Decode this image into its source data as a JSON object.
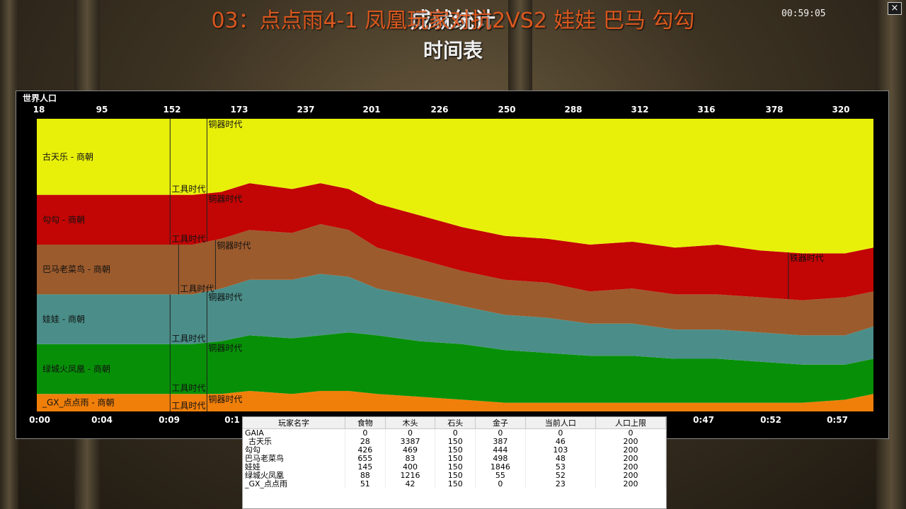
{
  "overlay_title": "03：点点雨4-1 凤凰玩家对抗2VS2 娃娃 巴马 勾勾",
  "window": {
    "title": "成就统计",
    "subtitle": "时间表",
    "clock": "00:59:05",
    "close_label": "×"
  },
  "chart_data": {
    "type": "area",
    "stacked": true,
    "normalized": true,
    "title": "世界人口",
    "population_ticks": [
      "18",
      "95",
      "152",
      "173",
      "237",
      "201",
      "226",
      "250",
      "288",
      "312",
      "316",
      "378",
      "320"
    ],
    "time_ticks": [
      "0:00",
      "0:04",
      "0:09",
      "0:1",
      "0:47",
      "0:52",
      "0:57"
    ],
    "x_minutes": [
      0,
      3,
      6,
      9,
      11,
      13,
      15,
      18,
      20,
      22,
      24,
      27,
      30,
      33,
      36,
      39,
      42,
      45,
      48,
      51,
      54,
      57,
      59
    ],
    "series": [
      {
        "name": "_GX_点点雨 - 商朝",
        "color": "#f07f0a",
        "values": [
          6,
          6,
          6,
          6,
          6,
          6,
          7,
          6,
          7,
          7,
          6,
          5,
          4,
          3,
          3,
          3,
          3,
          3,
          3,
          3,
          3,
          4,
          6
        ],
        "events": [
          {
            "label": "工具时代",
            "minute": 9.4
          },
          {
            "label": "铜器时代",
            "minute": 12.0
          }
        ]
      },
      {
        "name": "绿城火凤凰 - 商朝",
        "color": "#079007",
        "values": [
          17,
          17,
          17,
          17,
          17,
          18,
          19,
          19,
          19,
          20,
          20,
          19,
          19,
          18,
          17,
          16,
          16,
          15,
          15,
          14,
          13,
          12,
          12
        ],
        "events": [
          {
            "label": "工具时代",
            "minute": 9.4
          },
          {
            "label": "铜器时代",
            "minute": 12.0
          }
        ]
      },
      {
        "name": "娃娃 - 商朝",
        "color": "#4b8e89",
        "values": [
          17,
          17,
          17,
          17,
          17,
          18,
          19,
          20,
          21,
          19,
          16,
          15,
          13,
          12,
          12,
          11,
          11,
          10,
          10,
          10,
          10,
          10,
          11
        ],
        "events": [
          {
            "label": "工具时代",
            "minute": 9.4
          },
          {
            "label": "铜器时代",
            "minute": 12.0
          }
        ]
      },
      {
        "name": "巴马老菜鸟 - 商朝",
        "color": "#9c5b2d",
        "values": [
          17,
          17,
          17,
          17,
          17,
          17,
          17,
          16,
          17,
          16,
          14,
          13,
          12,
          12,
          12,
          11,
          12,
          12,
          12,
          12,
          12,
          13,
          12
        ],
        "events": [
          {
            "label": "工具时代",
            "minute": 10.0
          },
          {
            "label": "铜器时代",
            "minute": 12.6
          }
        ]
      },
      {
        "name": "勾勾 - 商朝",
        "color": "#c20505",
        "values": [
          17,
          17,
          17,
          17,
          17,
          16,
          16,
          15,
          14,
          14,
          15,
          15,
          15,
          15,
          15,
          16,
          16,
          16,
          17,
          16,
          16,
          15,
          15
        ],
        "events": [
          {
            "label": "工具时代",
            "minute": 9.4
          },
          {
            "label": "铜器时代",
            "minute": 12.0
          },
          {
            "label": "铁器时代",
            "minute": 53.0
          }
        ]
      },
      {
        "name": "古天乐 - 商朝",
        "color": "#e8f00a",
        "values": [
          26,
          26,
          26,
          26,
          26,
          25,
          22,
          24,
          22,
          24,
          29,
          33,
          37,
          40,
          41,
          43,
          42,
          44,
          43,
          45,
          46,
          46,
          44
        ],
        "events": [
          {
            "label": "工具时代",
            "minute": 9.4
          },
          {
            "label": "铜器时代",
            "minute": 12.0
          }
        ]
      }
    ]
  },
  "stats": {
    "headers": [
      "玩家名字",
      "食物",
      "木头",
      "石头",
      "金子",
      "当前人口",
      "人口上限"
    ],
    "rows": [
      [
        "GAIA",
        "0",
        "0",
        "0",
        "0",
        "0",
        "0"
      ],
      [
        "古天乐",
        "28",
        "3387",
        "150",
        "387",
        "46",
        "200"
      ],
      [
        "勾勾",
        "426",
        "469",
        "150",
        "444",
        "103",
        "200"
      ],
      [
        "巴马老菜鸟",
        "655",
        "83",
        "150",
        "498",
        "48",
        "200"
      ],
      [
        "娃娃",
        "145",
        "400",
        "150",
        "1846",
        "53",
        "200"
      ],
      [
        "绿城火凤凰",
        "88",
        "1216",
        "150",
        "55",
        "52",
        "200"
      ],
      [
        "_GX_点点雨",
        "51",
        "42",
        "150",
        "0",
        "23",
        "200"
      ]
    ]
  }
}
